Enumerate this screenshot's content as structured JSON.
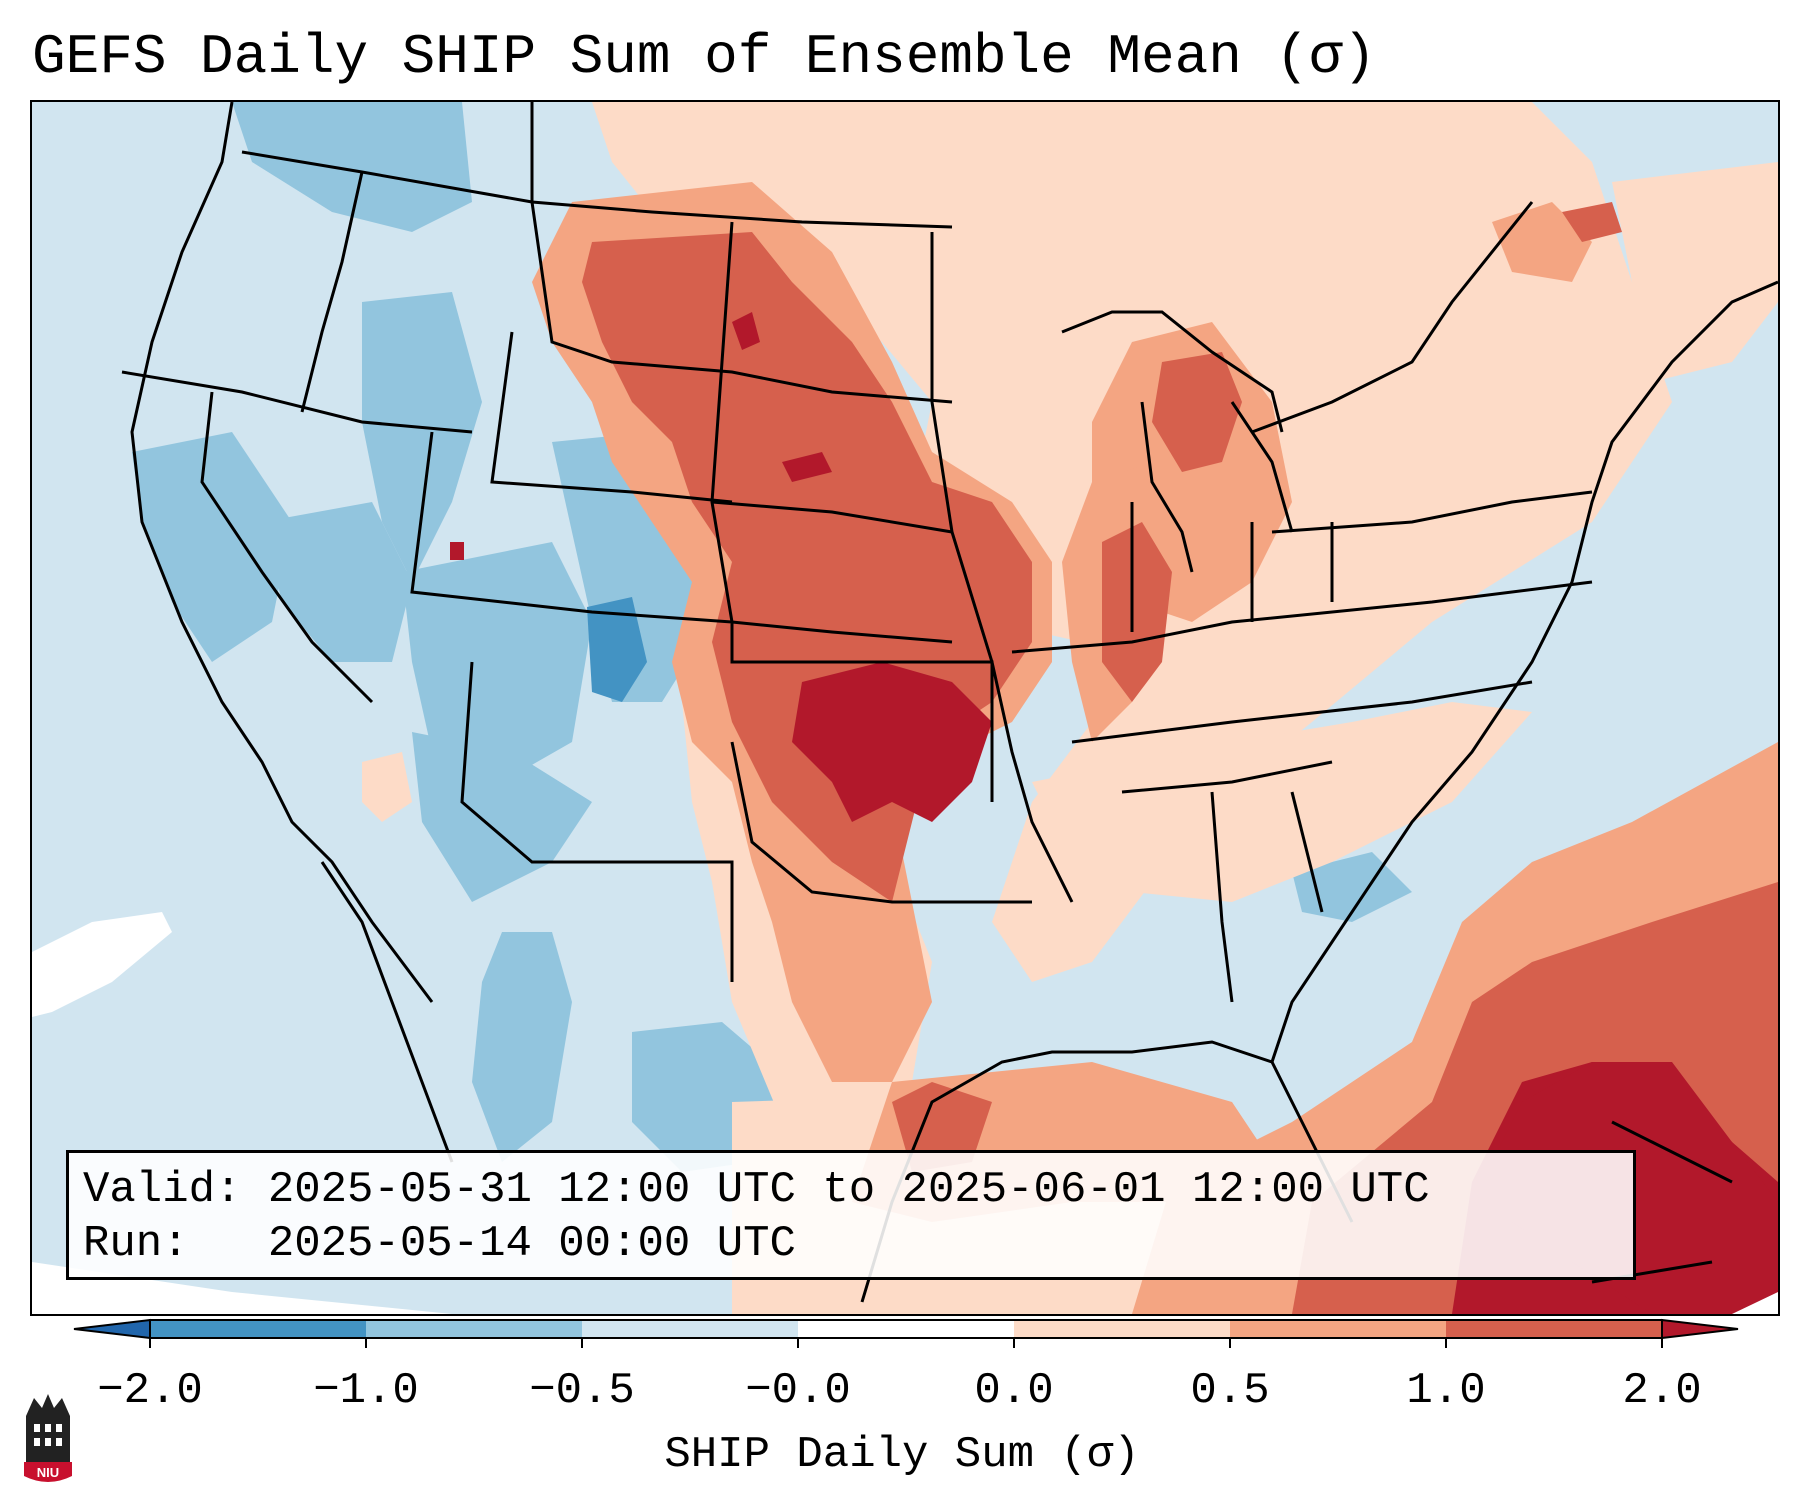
{
  "title": "GEFS Daily SHIP Sum of Ensemble Mean (σ)",
  "info": {
    "valid": "Valid: 2025-05-31 12:00 UTC to 2025-06-01 12:00 UTC",
    "run": "Run:   2025-05-14 00:00 UTC"
  },
  "colorbar": {
    "label": "SHIP Daily Sum (σ)",
    "ticks": [
      "−2.0",
      "−1.0",
      "−0.5",
      "−0.0",
      "0.0",
      "0.5",
      "1.0",
      "2.0"
    ],
    "colors": [
      "#4393c3",
      "#92c5de",
      "#d1e5f0",
      "#ffffff",
      "#fddbc7",
      "#f4a582",
      "#d6604d",
      "#b2182b"
    ],
    "under_color": "#2166ac",
    "over_color": "#b2182b"
  },
  "logo": {
    "text": "NIU",
    "color": "#c8102e"
  }
}
